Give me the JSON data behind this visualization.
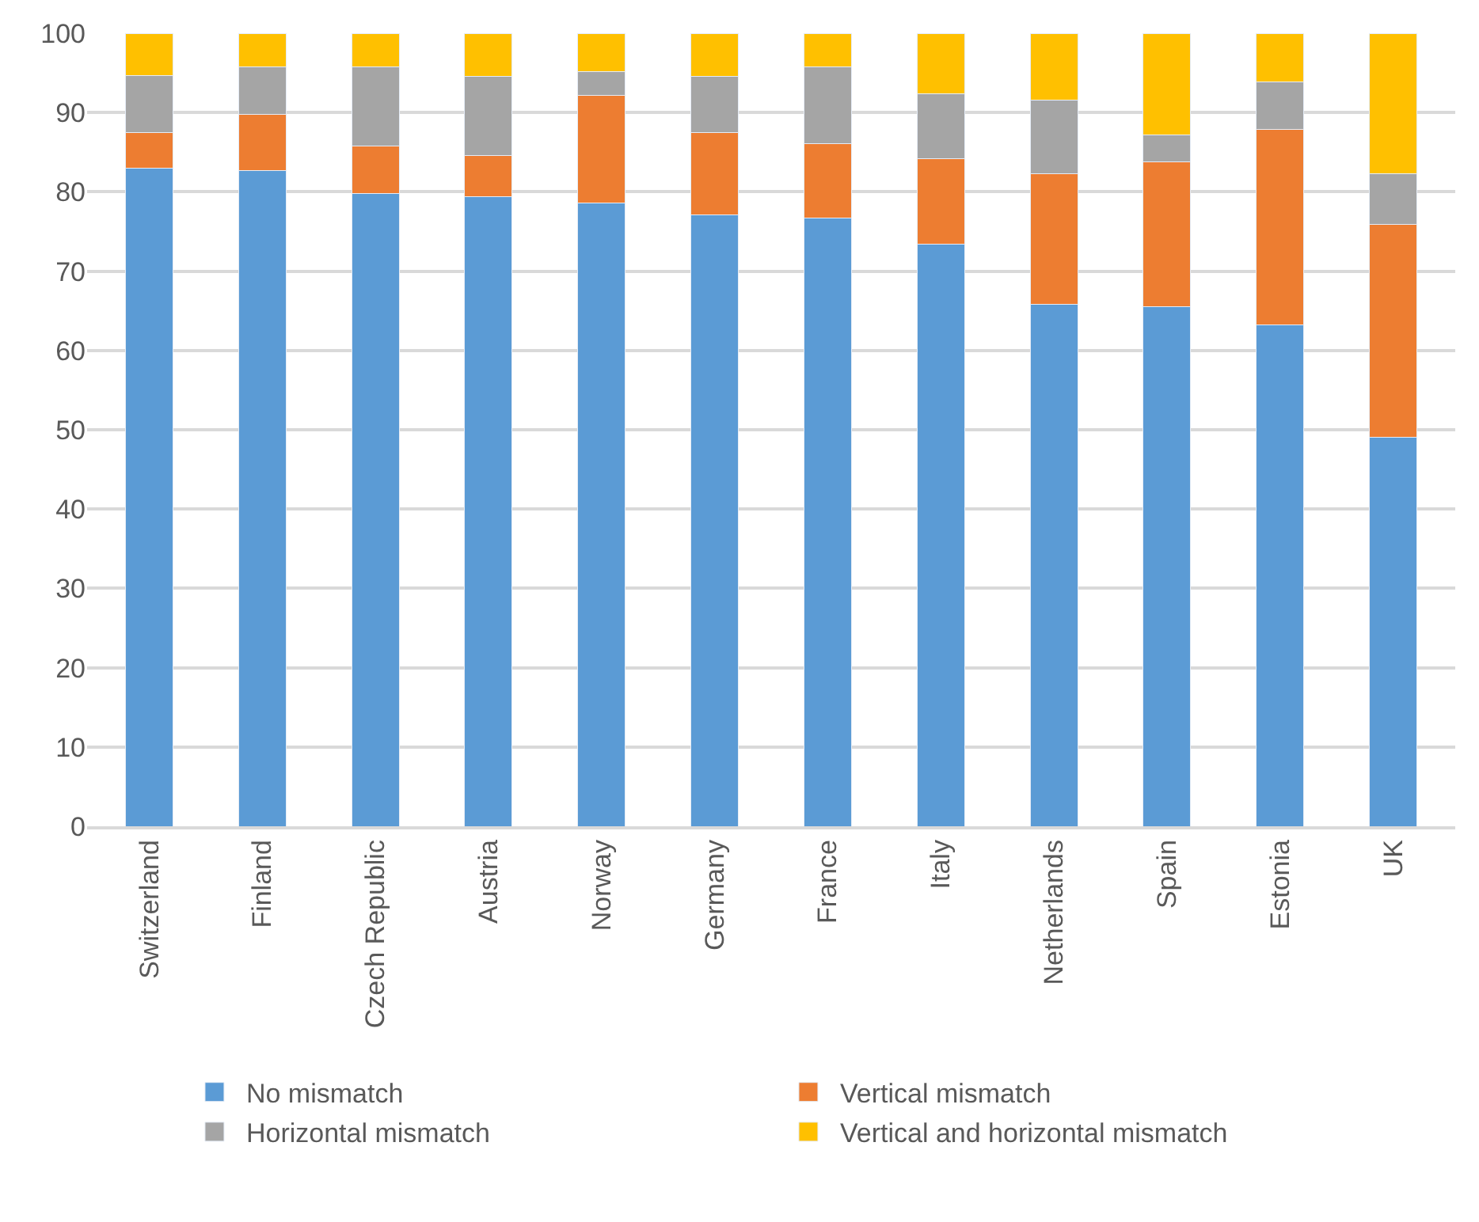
{
  "chart_data": {
    "type": "bar",
    "stacked": true,
    "categories": [
      "Switzerland",
      "Finland",
      "Czech Republic",
      "Austria",
      "Norway",
      "Germany",
      "France",
      "Italy",
      "Netherlands",
      "Spain",
      "Estonia",
      "UK"
    ],
    "series": [
      {
        "name": "No mismatch",
        "color": "#5b9bd5",
        "values": [
          83.0,
          82.7,
          79.8,
          79.4,
          78.6,
          77.1,
          76.7,
          73.4,
          65.8,
          65.5,
          63.2,
          49.1
        ]
      },
      {
        "name": "Vertical mismatch",
        "color": "#ed7d31",
        "values": [
          4.5,
          7.1,
          6.0,
          5.2,
          13.6,
          10.4,
          9.4,
          10.8,
          16.5,
          18.3,
          24.7,
          26.8
        ]
      },
      {
        "name": "Horizontal mismatch",
        "color": "#a5a5a5",
        "values": [
          7.2,
          6.0,
          10.0,
          10.0,
          3.0,
          7.1,
          9.7,
          8.2,
          9.3,
          3.4,
          6.0,
          6.4
        ]
      },
      {
        "name": "Vertical and horizontal mismatch",
        "color": "#ffc000",
        "values": [
          5.3,
          4.2,
          4.2,
          5.4,
          4.8,
          5.4,
          4.2,
          7.6,
          8.4,
          12.8,
          6.1,
          17.7
        ]
      }
    ],
    "ylim": [
      0,
      100
    ],
    "yticks": [
      0,
      10,
      20,
      30,
      40,
      50,
      60,
      70,
      80,
      90,
      100
    ],
    "grid": "y",
    "legend": "bottom"
  }
}
